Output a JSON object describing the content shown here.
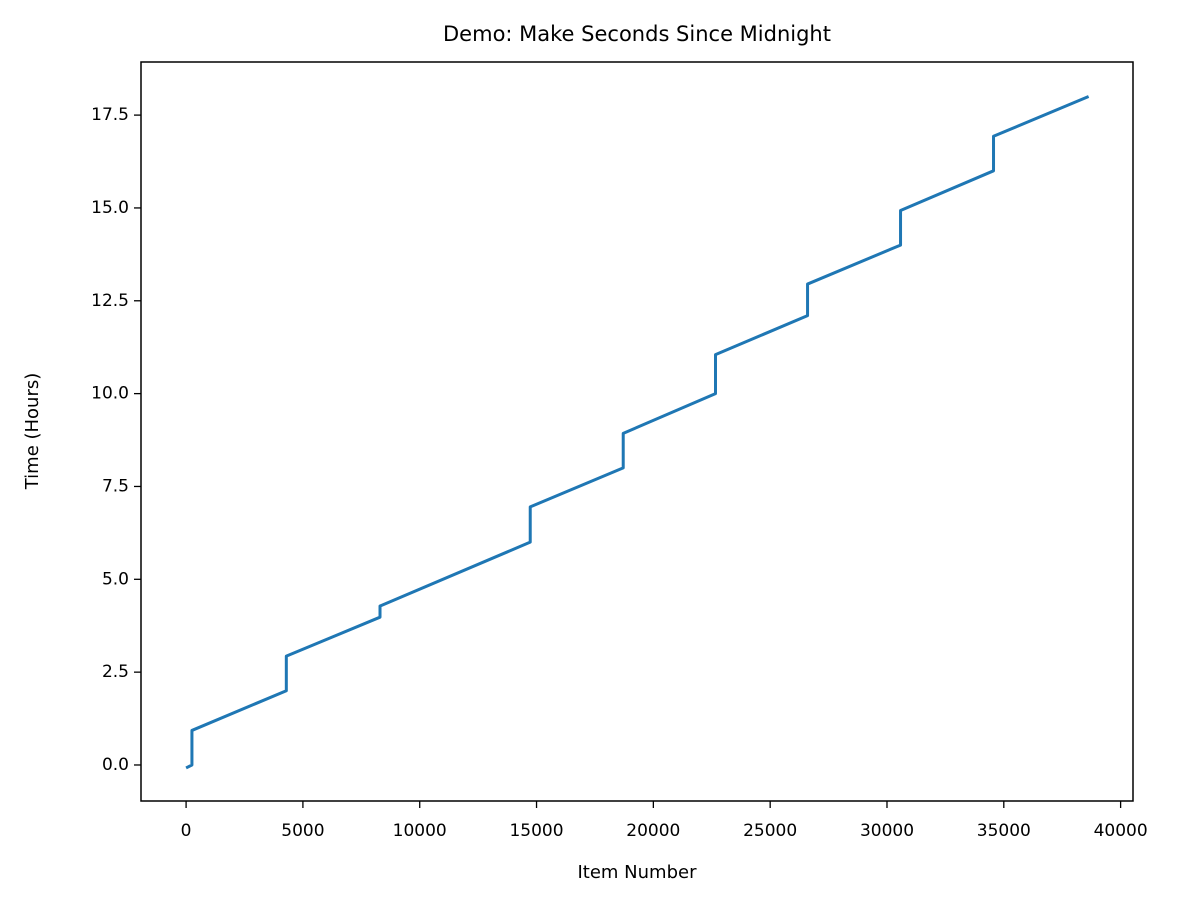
{
  "chart_data": {
    "type": "line",
    "title": "Demo: Make Seconds Since Midnight",
    "x_label": "Item Number",
    "y_label": "Time (Hours)",
    "x": [
      0,
      250,
      250,
      4290,
      4290,
      8300,
      8300,
      14730,
      14730,
      18710,
      18710,
      22660,
      22660,
      26600,
      26600,
      30580,
      30580,
      34560,
      34560,
      38630
    ],
    "series": [
      {
        "color": "#1f77b4",
        "values": [
          -0.08,
          0.0,
          0.93,
          2.0,
          2.93,
          3.98,
          4.28,
          6.0,
          6.95,
          8.0,
          8.93,
          10.0,
          11.05,
          12.1,
          12.95,
          14.0,
          14.93,
          16.0,
          16.93,
          18.0
        ]
      }
    ],
    "xlim": [
      -1930,
      40530
    ],
    "ylim": [
      -0.97,
      18.93
    ],
    "xticks": [
      0,
      5000,
      10000,
      15000,
      20000,
      25000,
      30000,
      35000,
      40000
    ],
    "yticks": [
      {
        "value": 0,
        "label": "0.0"
      },
      2.5,
      {
        "value": 5,
        "label": "5.0"
      },
      7.5,
      {
        "value": 10,
        "label": "10.0"
      },
      12.5,
      {
        "value": 15,
        "label": "15.0"
      },
      17.5
    ]
  }
}
